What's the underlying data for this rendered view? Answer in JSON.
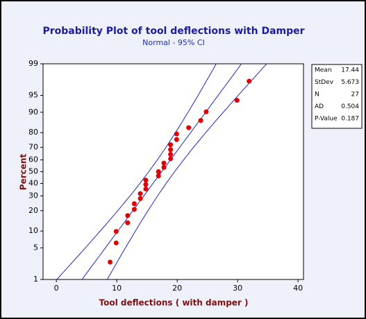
{
  "chart_data": {
    "type": "probability",
    "title": "Probability Plot of tool deflections with Damper",
    "subtitle": "Normal - 95% CI",
    "x_label": "Tool deflections (  with damper )",
    "y_label": "Percent",
    "yscale": "probability",
    "x": [
      8.9,
      9.9,
      9.9,
      11.8,
      11.8,
      12.9,
      12.9,
      13.9,
      13.9,
      14.8,
      14.8,
      14.8,
      16.9,
      16.9,
      17.8,
      17.8,
      18.9,
      18.9,
      18.9,
      18.9,
      19.9,
      19.9,
      21.9,
      23.9,
      24.8,
      29.9,
      31.9
    ],
    "values": [
      2.55,
      6.2,
      9.85,
      13.5,
      17.15,
      20.8,
      24.45,
      28.1,
      31.75,
      35.4,
      39.05,
      42.7,
      46.35,
      50,
      53.65,
      57.3,
      60.95,
      64.6,
      68.25,
      71.9,
      75.55,
      79.2,
      82.85,
      86.5,
      90.15,
      93.8,
      97.45
    ],
    "color": "#e00000",
    "line_color": "#2323c8",
    "xlim": [
      -2.2,
      40.9
    ],
    "xticks": [
      0,
      10,
      20,
      30,
      40
    ],
    "ylim": [
      1,
      99
    ],
    "yticks": [
      1,
      5,
      10,
      20,
      30,
      40,
      50,
      60,
      70,
      80,
      90,
      95,
      99
    ],
    "stats": [
      {
        "label": "Mean",
        "value": 17.44
      },
      {
        "label": "StDev",
        "value": 5.673
      },
      {
        "label": "N",
        "value": 27
      },
      {
        "label": "AD",
        "value": 0.504
      },
      {
        "label": "P-Value",
        "value": 0.187
      }
    ]
  }
}
